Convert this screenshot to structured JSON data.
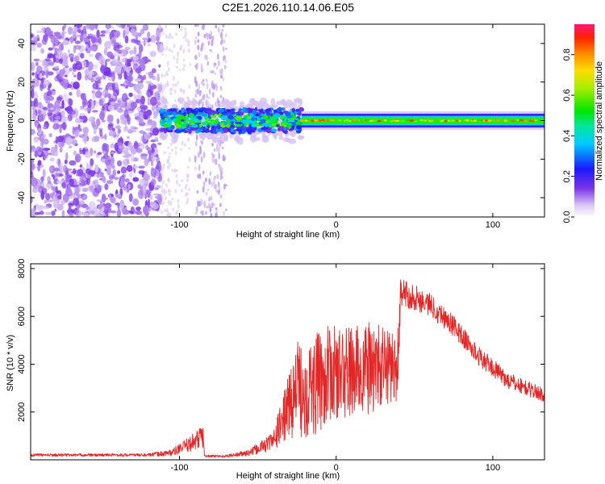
{
  "chart_data": [
    {
      "type": "heatmap",
      "title": "C2E1.2026.110.14.06.E05",
      "xlabel": "Height of straight line (km)",
      "ylabel": "Frequency (Hz)",
      "xlim": [
        -195,
        133
      ],
      "ylim": [
        -50,
        50
      ],
      "x_ticks": [
        -100,
        0,
        100
      ],
      "x_tick_labels": [
        "-100",
        "0",
        "100"
      ],
      "y_ticks": [
        -40,
        -20,
        0,
        20,
        40
      ],
      "y_tick_labels": [
        "-40",
        "-20",
        "0",
        "20",
        "40"
      ],
      "grid": false,
      "colorbar": {
        "label": "Normalized spectral amplitude",
        "range": [
          0,
          0.95
        ],
        "ticks": [
          0,
          0.2,
          0.4,
          0.6,
          0.8
        ],
        "tick_labels": [
          "0.0",
          "0.2",
          "0.4",
          "0.6",
          "0.8"
        ]
      },
      "regions": [
        {
          "name": "noise scatter",
          "x": [
            -195,
            -112
          ],
          "freq_spread": 50,
          "amplitude": [
            0.05,
            0.15
          ]
        },
        {
          "name": "noisy band",
          "x": [
            -112,
            -22
          ],
          "center_freq": 0,
          "half_width_hz": 6,
          "amplitude": [
            0.2,
            0.5
          ]
        },
        {
          "name": "narrow band",
          "x": [
            -22,
            133
          ],
          "center_freq": 0,
          "half_width_hz": 3,
          "amplitude": [
            0.3,
            0.9
          ]
        }
      ],
      "vertical_stripe": {
        "x": [
          -90,
          -70
        ],
        "amplitude": 0.05
      }
    },
    {
      "type": "line",
      "xlabel": "Height of straight line (km)",
      "ylabel": "SNR (10 * v/v)",
      "xlim": [
        -195,
        133
      ],
      "ylim": [
        0,
        8200
      ],
      "x_ticks": [
        -100,
        0,
        100
      ],
      "x_tick_labels": [
        "-100",
        "0",
        "100"
      ],
      "y_ticks": [
        2000,
        4000,
        6000,
        8000
      ],
      "y_tick_labels": [
        "2000",
        "4000",
        "6000",
        "8000"
      ],
      "grid": false,
      "series": [
        {
          "name": "SNR",
          "color": "#e32626",
          "envelope_x": [
            -195,
            -120,
            -105,
            -95,
            -85,
            -84,
            -70,
            -55,
            -40,
            -32,
            -25,
            -15,
            -5,
            5,
            20,
            40,
            41,
            50,
            60,
            75,
            90,
            110,
            133
          ],
          "envelope_y": [
            200,
            200,
            300,
            600,
            1000,
            150,
            150,
            300,
            800,
            2000,
            3000,
            3000,
            3600,
            3600,
            3800,
            4000,
            7000,
            6800,
            6500,
            5600,
            4400,
            3300,
            2700
          ],
          "noise_amplitude": [
            60,
            60,
            150,
            300,
            500,
            60,
            60,
            150,
            400,
            1200,
            2000,
            2200,
            2000,
            2000,
            2000,
            1500,
            600,
            550,
            500,
            450,
            400,
            350,
            300
          ]
        }
      ]
    }
  ]
}
